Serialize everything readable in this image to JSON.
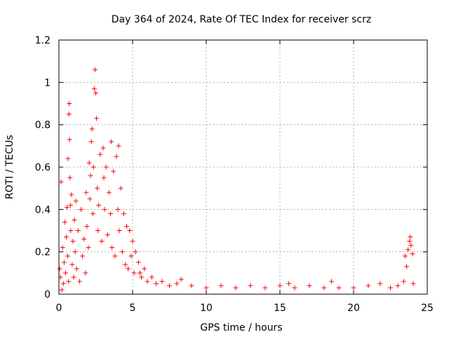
{
  "chart_data": {
    "type": "scatter",
    "title": "Day 364 of 2024, Rate Of TEC Index for receiver scrz",
    "xlabel": "GPS time / hours",
    "ylabel": "ROTI / TECUs",
    "xlim": [
      0,
      25
    ],
    "ylim": [
      0,
      1.2
    ],
    "x_ticks": [
      "0",
      "5",
      "10",
      "15",
      "20",
      "25"
    ],
    "y_ticks": [
      "0",
      "0.2",
      "0.4",
      "0.6",
      "0.8",
      "1",
      "1.2"
    ],
    "grid": true,
    "marker": "plus",
    "color": "#ff0000",
    "series": [
      {
        "points": [
          [
            0.05,
            0.12
          ],
          [
            0.1,
            0.08
          ],
          [
            0.15,
            0.53
          ],
          [
            0.2,
            0.02
          ],
          [
            0.25,
            0.22
          ],
          [
            0.3,
            0.05
          ],
          [
            0.35,
            0.15
          ],
          [
            0.4,
            0.34
          ],
          [
            0.45,
            0.1
          ],
          [
            0.5,
            0.27
          ],
          [
            0.55,
            0.41
          ],
          [
            0.6,
            0.18
          ],
          [
            0.62,
            0.64
          ],
          [
            0.65,
            0.06
          ],
          [
            0.68,
            0.85
          ],
          [
            0.7,
            0.9
          ],
          [
            0.72,
            0.73
          ],
          [
            0.75,
            0.55
          ],
          [
            0.78,
            0.42
          ],
          [
            0.8,
            0.3
          ],
          [
            0.85,
            0.47
          ],
          [
            0.9,
            0.14
          ],
          [
            0.95,
            0.25
          ],
          [
            1.0,
            0.08
          ],
          [
            1.05,
            0.35
          ],
          [
            1.1,
            0.2
          ],
          [
            1.15,
            0.44
          ],
          [
            1.2,
            0.12
          ],
          [
            1.3,
            0.3
          ],
          [
            1.4,
            0.06
          ],
          [
            1.5,
            0.4
          ],
          [
            1.6,
            0.18
          ],
          [
            1.7,
            0.26
          ],
          [
            1.8,
            0.1
          ],
          [
            1.85,
            0.48
          ],
          [
            1.9,
            0.32
          ],
          [
            2.0,
            0.22
          ],
          [
            2.05,
            0.62
          ],
          [
            2.1,
            0.45
          ],
          [
            2.15,
            0.56
          ],
          [
            2.2,
            0.72
          ],
          [
            2.25,
            0.78
          ],
          [
            2.3,
            0.38
          ],
          [
            2.35,
            0.6
          ],
          [
            2.4,
            0.97
          ],
          [
            2.45,
            1.06
          ],
          [
            2.5,
            0.95
          ],
          [
            2.55,
            0.83
          ],
          [
            2.6,
            0.5
          ],
          [
            2.65,
            0.3
          ],
          [
            2.7,
            0.42
          ],
          [
            2.8,
            0.66
          ],
          [
            2.9,
            0.25
          ],
          [
            3.0,
            0.69
          ],
          [
            3.05,
            0.55
          ],
          [
            3.1,
            0.4
          ],
          [
            3.2,
            0.6
          ],
          [
            3.3,
            0.28
          ],
          [
            3.4,
            0.48
          ],
          [
            3.5,
            0.38
          ],
          [
            3.55,
            0.72
          ],
          [
            3.6,
            0.22
          ],
          [
            3.7,
            0.58
          ],
          [
            3.8,
            0.18
          ],
          [
            3.9,
            0.65
          ],
          [
            4.0,
            0.4
          ],
          [
            4.05,
            0.7
          ],
          [
            4.1,
            0.3
          ],
          [
            4.2,
            0.5
          ],
          [
            4.3,
            0.2
          ],
          [
            4.4,
            0.38
          ],
          [
            4.5,
            0.14
          ],
          [
            4.6,
            0.32
          ],
          [
            4.7,
            0.12
          ],
          [
            4.8,
            0.3
          ],
          [
            4.9,
            0.18
          ],
          [
            5.0,
            0.25
          ],
          [
            5.1,
            0.1
          ],
          [
            5.2,
            0.2
          ],
          [
            5.4,
            0.15
          ],
          [
            5.5,
            0.1
          ],
          [
            5.6,
            0.08
          ],
          [
            5.8,
            0.12
          ],
          [
            6.0,
            0.06
          ],
          [
            6.3,
            0.08
          ],
          [
            6.6,
            0.05
          ],
          [
            7.0,
            0.06
          ],
          [
            7.5,
            0.04
          ],
          [
            8.0,
            0.05
          ],
          [
            8.3,
            0.07
          ],
          [
            9.0,
            0.04
          ],
          [
            10.0,
            0.03
          ],
          [
            11.0,
            0.04
          ],
          [
            12.0,
            0.03
          ],
          [
            13.0,
            0.04
          ],
          [
            14.0,
            0.03
          ],
          [
            15.0,
            0.04
          ],
          [
            15.6,
            0.05
          ],
          [
            16.0,
            0.03
          ],
          [
            17.0,
            0.04
          ],
          [
            18.0,
            0.03
          ],
          [
            18.5,
            0.06
          ],
          [
            19.0,
            0.03
          ],
          [
            20.0,
            0.03
          ],
          [
            21.0,
            0.04
          ],
          [
            21.8,
            0.05
          ],
          [
            22.5,
            0.03
          ],
          [
            23.0,
            0.04
          ],
          [
            23.4,
            0.06
          ],
          [
            23.5,
            0.18
          ],
          [
            23.6,
            0.13
          ],
          [
            23.7,
            0.21
          ],
          [
            23.8,
            0.25
          ],
          [
            23.85,
            0.27
          ],
          [
            23.9,
            0.23
          ],
          [
            24.0,
            0.19
          ],
          [
            24.05,
            0.05
          ]
        ]
      }
    ]
  }
}
